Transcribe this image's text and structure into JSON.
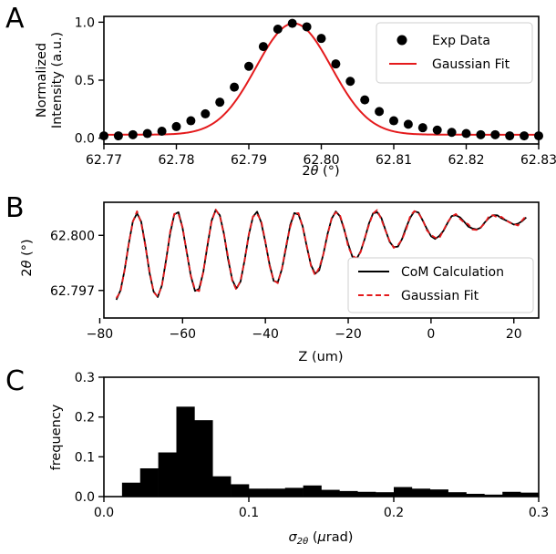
{
  "chart_data": [
    {
      "panel": "A",
      "type": "scatter",
      "xlabel": "2θ (°)",
      "ylabel": "Normalized Intensity (a.u.)",
      "ylabel_lines": [
        "Normalized",
        "Intensity (a.u.)"
      ],
      "xlim": [
        62.77,
        62.83
      ],
      "ylim": [
        -0.05,
        1.05
      ],
      "xticks": [
        62.77,
        62.78,
        62.79,
        62.8,
        62.81,
        62.82,
        62.83
      ],
      "xtick_labels": [
        "62.77",
        "62.78",
        "62.79",
        "62.80",
        "62.81",
        "62.82",
        "62.83"
      ],
      "yticks": [
        0.0,
        0.5,
        1.0
      ],
      "ytick_labels": [
        "0.0",
        "0.5",
        "1.0"
      ],
      "legend_position": "top-right",
      "series": [
        {
          "name": "Exp Data",
          "kind": "points",
          "color": "#000000",
          "x": [
            62.77,
            62.772,
            62.774,
            62.776,
            62.778,
            62.78,
            62.782,
            62.784,
            62.786,
            62.788,
            62.79,
            62.792,
            62.794,
            62.796,
            62.798,
            62.8,
            62.802,
            62.804,
            62.806,
            62.808,
            62.81,
            62.812,
            62.814,
            62.816,
            62.818,
            62.82,
            62.822,
            62.824,
            62.826,
            62.828,
            62.83
          ],
          "y": [
            0.02,
            0.02,
            0.03,
            0.04,
            0.06,
            0.1,
            0.15,
            0.21,
            0.31,
            0.44,
            0.62,
            0.79,
            0.94,
            0.99,
            0.96,
            0.86,
            0.64,
            0.49,
            0.33,
            0.23,
            0.15,
            0.12,
            0.09,
            0.07,
            0.05,
            0.04,
            0.03,
            0.03,
            0.02,
            0.02,
            0.02
          ]
        },
        {
          "name": "Gaussian Fit",
          "kind": "gaussian",
          "color": "#e41a1c",
          "amplitude": 0.96,
          "center": 62.7962,
          "sigma": 0.0052,
          "offset": 0.03
        }
      ]
    },
    {
      "panel": "B",
      "type": "line",
      "xlabel": "Z (um)",
      "ylabel": "2θ (°)",
      "xlim": [
        -79,
        26
      ],
      "ylim": [
        62.7955,
        62.8018
      ],
      "xticks": [
        -80,
        -60,
        -40,
        -20,
        0,
        20
      ],
      "xtick_labels": [
        "−80",
        "−60",
        "−40",
        "−20",
        "0",
        "20"
      ],
      "yticks": [
        62.797,
        62.8
      ],
      "ytick_labels": [
        "62.797",
        "62.800"
      ],
      "legend_position": "lower-right",
      "oscillation": {
        "z_start": -76,
        "z_end": 23,
        "z_step": 1,
        "period": 9.6,
        "first_peak": -71,
        "peak_levels": [
          62.8012,
          62.8013,
          62.8014,
          62.8013,
          62.8013,
          62.8013,
          62.8013,
          62.8013,
          62.8011,
          62.8011,
          62.8012
        ],
        "trough_levels": [
          62.7965,
          62.7966,
          62.7969,
          62.7971,
          62.7974,
          62.7979,
          62.7987,
          62.7993,
          62.7998,
          62.8003,
          62.8006
        ],
        "start_value": 62.7965,
        "end_value": 62.8007
      },
      "series": [
        {
          "name": "CoM Calculation",
          "style": "solid",
          "color": "#000000",
          "noise": 5e-05
        },
        {
          "name": "Gaussian Fit",
          "style": "dashed",
          "color": "#e41a1c",
          "noise": 0.00012
        }
      ]
    },
    {
      "panel": "C",
      "type": "bar",
      "xlabel": "σ2θ (μrad)",
      "ylabel": "frequency",
      "xlim": [
        0,
        0.3
      ],
      "ylim": [
        0,
        0.3
      ],
      "xticks": [
        0.0,
        0.1,
        0.2,
        0.3
      ],
      "xtick_labels": [
        "0.0",
        "0.1",
        "0.2",
        "0.3"
      ],
      "yticks": [
        0.0,
        0.1,
        0.2,
        0.3
      ],
      "ytick_labels": [
        "0.0",
        "0.1",
        "0.2",
        "0.3"
      ],
      "bin_edges": [
        0.0,
        0.0125,
        0.025,
        0.0375,
        0.05,
        0.0625,
        0.075,
        0.0875,
        0.1,
        0.1125,
        0.125,
        0.1375,
        0.15,
        0.1625,
        0.175,
        0.1875,
        0.2,
        0.2125,
        0.225,
        0.2375,
        0.25,
        0.2625,
        0.275,
        0.2875,
        0.3
      ],
      "values": [
        0.0,
        0.035,
        0.071,
        0.111,
        0.226,
        0.192,
        0.051,
        0.031,
        0.02,
        0.02,
        0.022,
        0.028,
        0.017,
        0.014,
        0.012,
        0.011,
        0.024,
        0.02,
        0.018,
        0.011,
        0.007,
        0.005,
        0.012,
        0.01
      ],
      "color": "#000000"
    }
  ],
  "panels": {
    "a": {
      "letter": "A",
      "xlabel_pre": "2",
      "xlabel_theta": "θ",
      "xlabel_post": " (°)",
      "ylabel_line1": "Normalized",
      "ylabel_line2": "Intensity (a.u.)",
      "legend": [
        "Exp Data",
        "Gaussian Fit"
      ]
    },
    "b": {
      "letter": "B",
      "xlabel": "Z (um)",
      "ylabel_pre": "2",
      "ylabel_theta": "θ",
      "ylabel_post": " (°)",
      "legend": [
        "CoM Calculation",
        "Gaussian Fit"
      ]
    },
    "c": {
      "letter": "C",
      "xlabel_sigma": "σ",
      "xlabel_sub": "2θ",
      "xlabel_open": " (",
      "xlabel_mu": "μ",
      "xlabel_rest": "rad)",
      "ylabel": "frequency"
    }
  }
}
